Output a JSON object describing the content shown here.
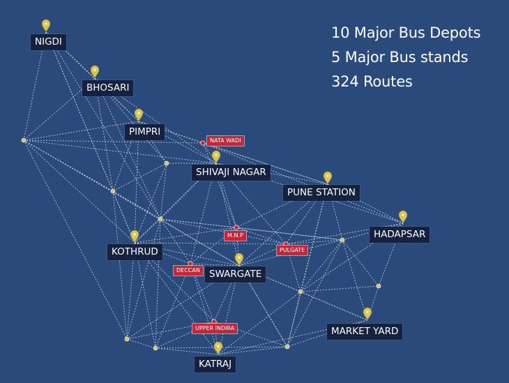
{
  "stats": {
    "depots": "10 Major Bus Depots",
    "stands": "5 Major Bus stands",
    "routes": "324 Routes"
  },
  "colors": {
    "background": "#2b4a7c",
    "route_line": "#cfd8e6",
    "depot_pin": "#d9c45a",
    "depot_label_bg": "#15213f",
    "stand_label_bg": "#c2273a",
    "junction_dot": "#d9c45a"
  },
  "depots": [
    {
      "id": "nigdi",
      "name": "NIGDI"
    },
    {
      "id": "bhosari",
      "name": "BHOSARI"
    },
    {
      "id": "pimpri",
      "name": "PIMPRI"
    },
    {
      "id": "shivaji-nagar",
      "name": "SHIVAJI NAGAR"
    },
    {
      "id": "pune-station",
      "name": "PUNE STATION"
    },
    {
      "id": "hadapsar",
      "name": "HADAPSAR"
    },
    {
      "id": "kothrud",
      "name": "KOTHRUD"
    },
    {
      "id": "swargate",
      "name": "SWARGATE"
    },
    {
      "id": "market-yard",
      "name": "MARKET YARD"
    },
    {
      "id": "katraj",
      "name": "KATRAJ"
    }
  ],
  "bus_stands": [
    {
      "id": "nata-wadi",
      "name": "NATA WADI"
    },
    {
      "id": "mnp",
      "name": "M.N.P"
    },
    {
      "id": "pulgate",
      "name": "PULGATE"
    },
    {
      "id": "deccan",
      "name": "DECCAN"
    },
    {
      "id": "upper-indira",
      "name": "UPPER INDIRA"
    }
  ]
}
